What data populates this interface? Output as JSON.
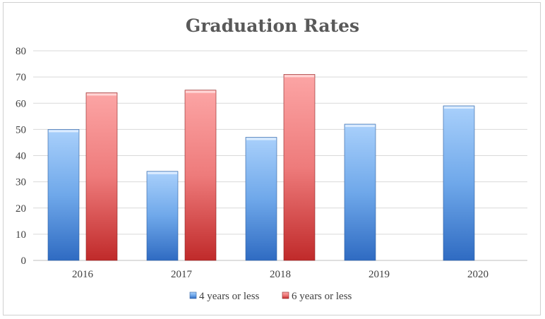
{
  "chart_data": {
    "type": "bar",
    "title": "Graduation Rates",
    "categories": [
      "2016",
      "2017",
      "2018",
      "2019",
      "2020"
    ],
    "series": [
      {
        "name": "4 years or less",
        "values": [
          50,
          34,
          47,
          52,
          59
        ],
        "color": "#5b9bd5"
      },
      {
        "name": "6 years or less",
        "values": [
          64,
          65,
          71,
          null,
          null
        ],
        "color": "#e05a5a"
      }
    ],
    "ylim": [
      0,
      80
    ],
    "yticks": [
      0,
      10,
      20,
      30,
      40,
      50,
      60,
      70,
      80
    ],
    "grid": true,
    "legend_position": "bottom"
  }
}
